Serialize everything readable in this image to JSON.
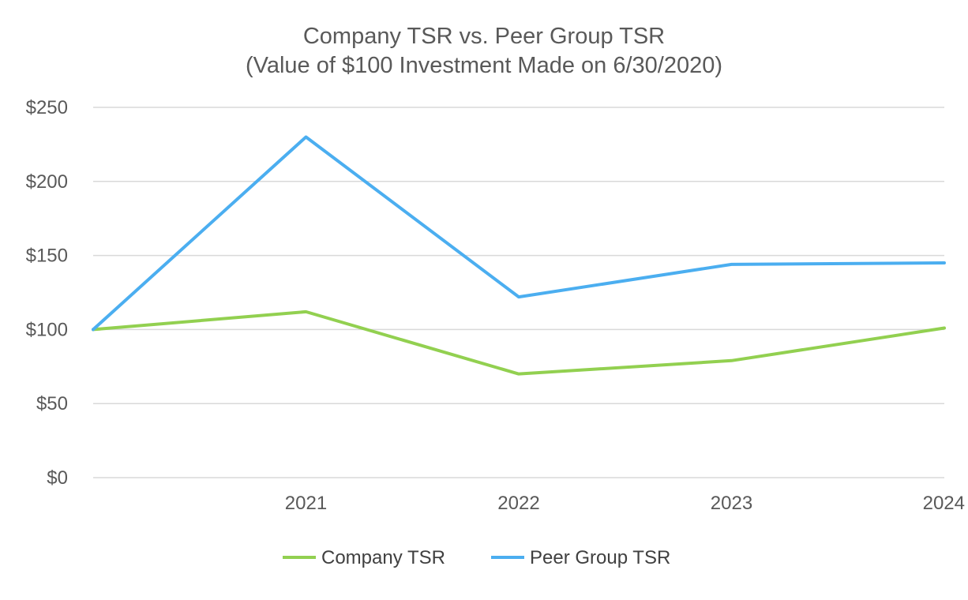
{
  "chart_data": {
    "type": "line",
    "title": "Company TSR vs. Peer Group TSR",
    "subtitle": "(Value of $100 Investment Made on 6/30/2020)",
    "x_start": "",
    "categories": [
      "",
      "2021",
      "2022",
      "2023",
      "2024"
    ],
    "ylim": [
      0,
      250
    ],
    "yticks": [
      0,
      50,
      100,
      150,
      200,
      250
    ],
    "ytick_labels": [
      "$0",
      "$50",
      "$100",
      "$150",
      "$200",
      "$250"
    ],
    "grid": true,
    "legend_position": "bottom",
    "series": [
      {
        "name": "Company TSR",
        "color": "#92d050",
        "values": [
          100,
          112,
          70,
          79,
          101
        ]
      },
      {
        "name": "Peer Group TSR",
        "color": "#4baef0",
        "values": [
          100,
          230,
          122,
          144,
          145
        ]
      }
    ]
  }
}
